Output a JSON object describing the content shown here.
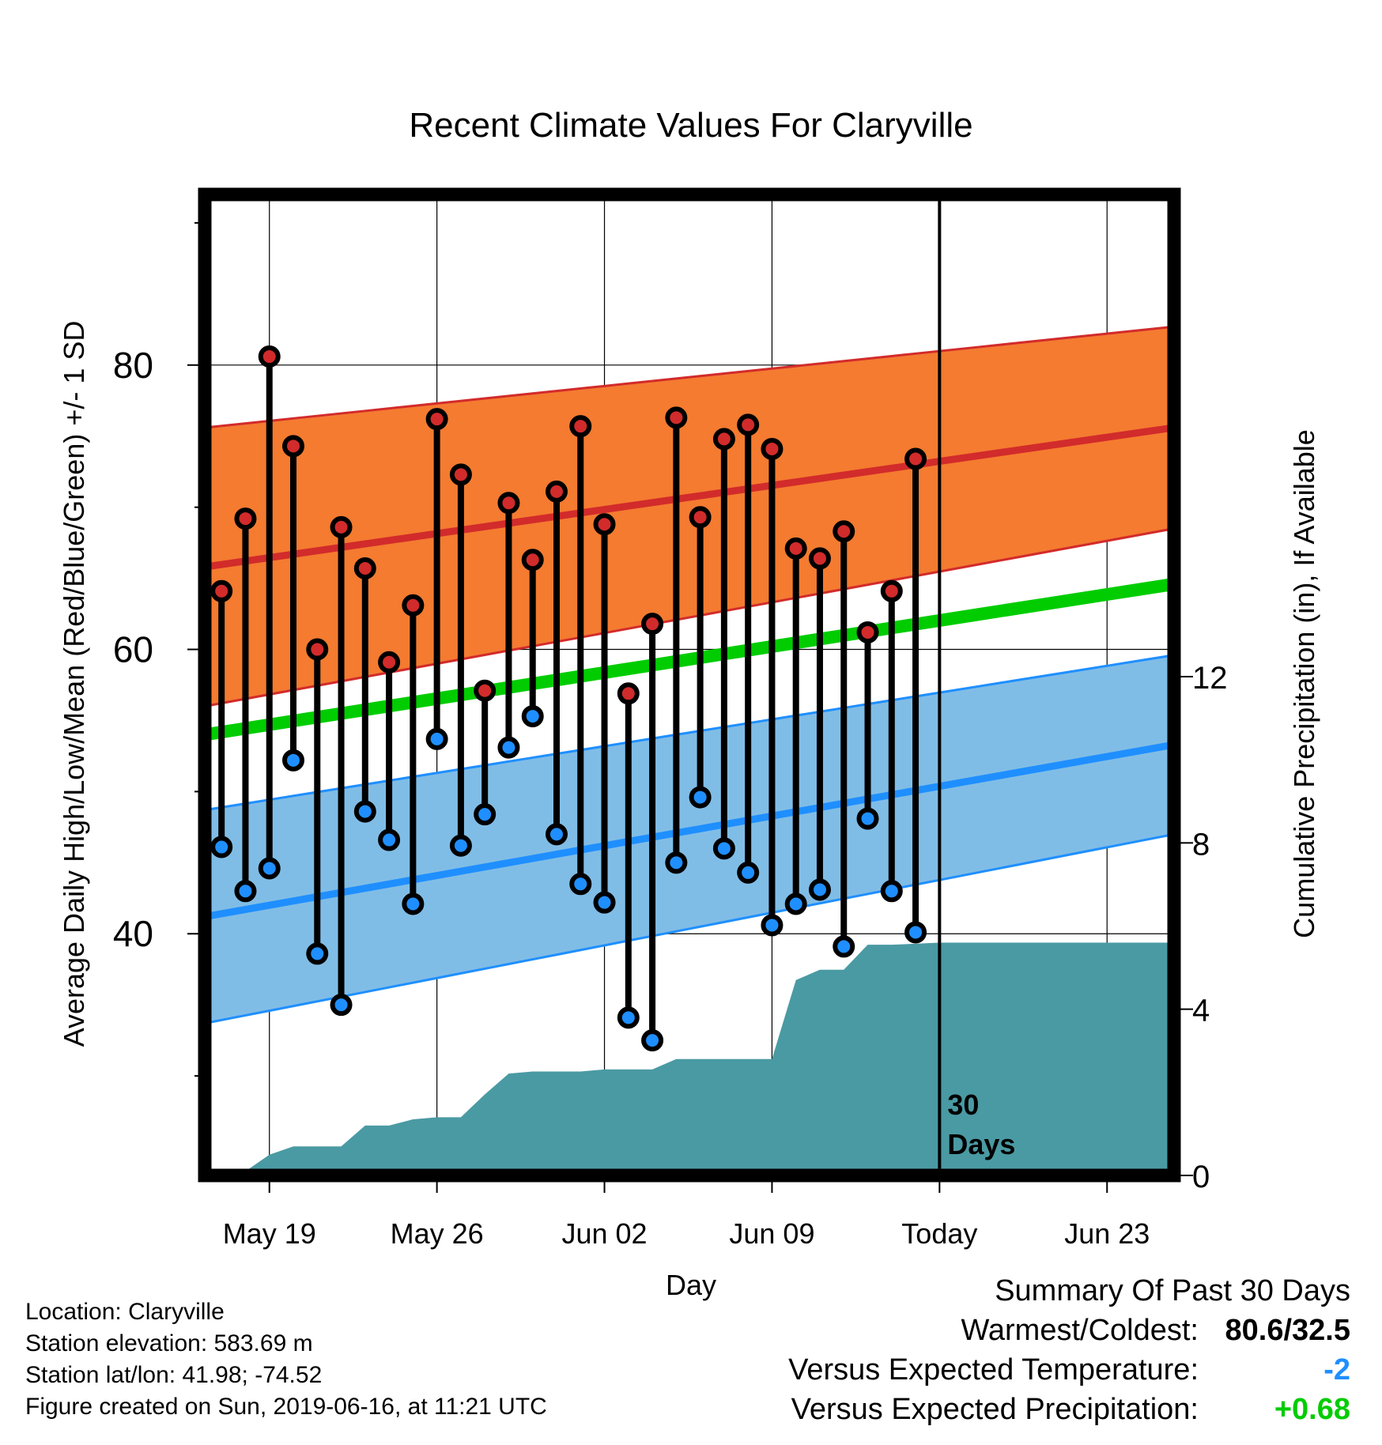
{
  "colors": {
    "high_band": "#f47b30",
    "high_line": "#d22b2b",
    "low_band": "#80bde6",
    "low_line": "#1f8fff",
    "mean_line": "#00cc00",
    "precip": "#4a9aa3",
    "temp_diff": "#1f8fff",
    "precip_diff": "#00cc00"
  },
  "chart_data": {
    "type": "line",
    "title": "Recent Climate Values For Claryville",
    "xlabel": "Day",
    "ylabel": "Average Daily High/Low/Mean (Red/Blue/Green) +/- 1 SD",
    "y2label": "Cumulative Precipitation (in), If Available",
    "x_ticks": [
      "May 19",
      "May 26",
      "Jun 02",
      "Jun 09",
      "Today",
      "Jun 23"
    ],
    "x_tick_day_offsets": [
      0,
      7,
      14,
      21,
      28,
      35
    ],
    "xlim_day_offsets": [
      -2.7,
      37.8
    ],
    "ylim": [
      23,
      92
    ],
    "yticks": [
      40,
      60,
      80
    ],
    "y2lim": [
      0,
      23.6
    ],
    "y2ticks": [
      0,
      4,
      8,
      12
    ],
    "today_label": "30\nDays",
    "days": [
      -2,
      -1,
      0,
      1,
      2,
      3,
      4,
      5,
      6,
      7,
      8,
      9,
      10,
      11,
      12,
      13,
      14,
      15,
      16,
      17,
      18,
      19,
      20,
      21,
      22,
      23,
      24,
      25,
      26,
      27
    ],
    "highs": [
      64.1,
      69.2,
      80.6,
      74.3,
      60.0,
      68.6,
      65.7,
      59.1,
      63.1,
      76.2,
      72.3,
      57.1,
      70.3,
      66.3,
      71.1,
      75.7,
      68.8,
      56.9,
      61.8,
      76.3,
      69.3,
      74.8,
      75.8,
      74.1,
      67.1,
      66.4,
      68.3,
      61.2,
      64.1,
      73.4
    ],
    "lows": [
      46.1,
      43.0,
      44.6,
      52.2,
      38.6,
      35.0,
      48.6,
      46.6,
      42.1,
      53.7,
      46.2,
      48.4,
      53.1,
      55.3,
      47.0,
      43.5,
      42.2,
      34.1,
      32.5,
      45.0,
      49.6,
      46.0,
      44.3,
      40.6,
      42.1,
      43.1,
      39.1,
      48.1,
      43.0,
      40.1
    ],
    "normal_days": [
      -2.7,
      37.8
    ],
    "normal_high": [
      65.8,
      75.6
    ],
    "normal_high_sd": [
      9.8,
      7.1
    ],
    "normal_mean": [
      54.0,
      64.6
    ],
    "normal_low": [
      41.2,
      53.3
    ],
    "normal_low_sd": [
      7.5,
      6.3
    ],
    "precip_days": [
      -2.7,
      -2,
      -1,
      0,
      1,
      2,
      3,
      4,
      5,
      6,
      7,
      8,
      9,
      10,
      11,
      12,
      13,
      14,
      15,
      16,
      17,
      18,
      19,
      20,
      21,
      22,
      23,
      24,
      25,
      26,
      28,
      37.8
    ],
    "precip_cum": [
      0.0,
      0.1,
      0.1,
      0.5,
      0.7,
      0.7,
      0.7,
      1.2,
      1.2,
      1.35,
      1.4,
      1.4,
      1.95,
      2.45,
      2.5,
      2.5,
      2.5,
      2.55,
      2.55,
      2.55,
      2.8,
      2.8,
      2.8,
      2.8,
      2.8,
      4.7,
      4.95,
      4.95,
      5.55,
      5.55,
      5.6,
      5.6
    ]
  },
  "info": {
    "location": "Location: Claryville",
    "elevation": "Station elevation: 583.69 m",
    "latlon": "Station lat/lon: 41.98; -74.52",
    "created": "Figure created on Sun, 2019-06-16, at 11:21 UTC"
  },
  "summary": {
    "title": "Summary Of Past 30 Days",
    "warmest_label": "Warmest/Coldest:",
    "warmest_value": "80.6/32.5",
    "temp_label": "Versus Expected Temperature:",
    "temp_value": "-2",
    "precip_label": "Versus Expected Precipitation:",
    "precip_value": "+0.68"
  }
}
